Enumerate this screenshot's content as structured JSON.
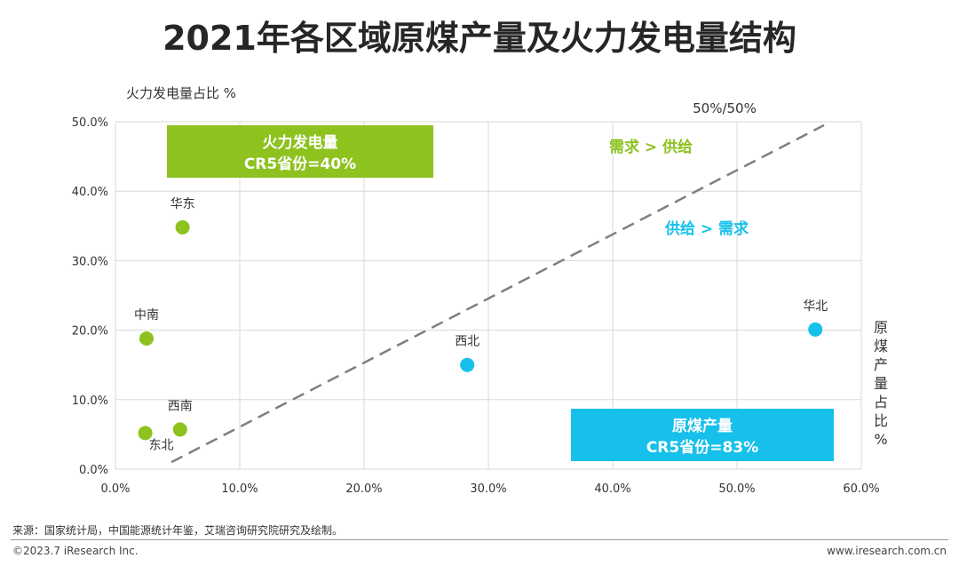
{
  "title": "2021年各区域原煤产量及火力发电量结构",
  "chart_data": {
    "type": "scatter",
    "ylabel": "火力发电量占比 %",
    "xlabel": "原煤产量占比%",
    "xlim": [
      0,
      60
    ],
    "ylim": [
      0,
      50
    ],
    "x_ticks": [
      "0.0%",
      "10.0%",
      "20.0%",
      "30.0%",
      "40.0%",
      "50.0%",
      "60.0%"
    ],
    "y_ticks": [
      "0.0%",
      "10.0%",
      "20.0%",
      "30.0%",
      "40.0%",
      "50.0%"
    ],
    "grid": true,
    "points": [
      {
        "label": "华东",
        "x": 5.4,
        "y": 34.8,
        "color": "#8dc21f"
      },
      {
        "label": "中南",
        "x": 2.5,
        "y": 18.8,
        "color": "#8dc21f"
      },
      {
        "label": "西南",
        "x": 5.2,
        "y": 5.7,
        "color": "#8dc21f"
      },
      {
        "label": "东北",
        "x": 2.4,
        "y": 5.2,
        "color": "#8dc21f"
      },
      {
        "label": "西北",
        "x": 28.3,
        "y": 15.0,
        "color": "#17c0eb"
      },
      {
        "label": "华北",
        "x": 56.3,
        "y": 20.1,
        "color": "#17c0eb"
      }
    ],
    "reference_line": {
      "label": "50%/50%",
      "from": [
        4.5,
        1.0
      ],
      "to": [
        57.0,
        49.5
      ]
    },
    "annotations": {
      "demand_over_supply": "需求 > 供给",
      "supply_over_demand": "供给 > 需求"
    },
    "boxes": {
      "thermal": {
        "line1": "火力发电量",
        "line2": "CR5省份=40%",
        "color": "#8dc21f"
      },
      "coal": {
        "line1": "原煤产量",
        "line2": "CR5省份=83%",
        "color": "#17c0eb"
      }
    }
  },
  "footer": {
    "source": "来源：国家统计局，中国能源统计年鉴，艾瑞咨询研究院研究及绘制。",
    "copyright": "©2023.7 iResearch Inc.",
    "website": "www.iresearch.com.cn"
  }
}
